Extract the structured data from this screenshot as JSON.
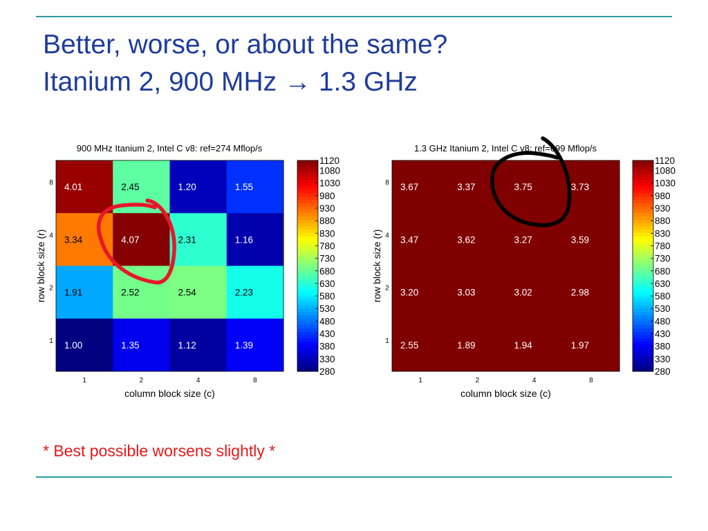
{
  "slide": {
    "title_line_1": "Better, worse, or about the same?",
    "title_line_2": "Itanium 2, 900 MHz → 1.3 GHz",
    "note": "* Best possible worsens slightly *",
    "accent_color": "#2a9c9c",
    "title_color": "#1f3c9b",
    "note_color": "#e81717"
  },
  "chart_data": [
    {
      "type": "heatmap",
      "title": "900 MHz Itanium 2, Intel C v8: ref=274 Mflop/s",
      "xlabel": "column block size (c)",
      "ylabel": "row block size (r)",
      "x": [
        "1",
        "2",
        "4",
        "8"
      ],
      "y": [
        "8",
        "4",
        "2",
        "1"
      ],
      "cell_labels": [
        [
          "4.01",
          "2.45",
          "1.20",
          "1.55"
        ],
        [
          "3.34",
          "4.07",
          "2.31",
          "1.16"
        ],
        [
          "1.91",
          "2.52",
          "2.54",
          "2.23"
        ],
        [
          "1.00",
          "1.35",
          "1.12",
          "1.39"
        ]
      ],
      "colorbar": {
        "min": 280,
        "max": 1120,
        "ticks": [
          "1120",
          "1080",
          "1030",
          "980",
          "930",
          "880",
          "830",
          "780",
          "730",
          "680",
          "630",
          "580",
          "530",
          "480",
          "430",
          "380",
          "330",
          "280"
        ]
      },
      "annotation": {
        "shape": "hand-drawn circle",
        "color": "#e8162a",
        "cell": [
          "4",
          "2"
        ]
      }
    },
    {
      "type": "heatmap",
      "title": "1.3 GHz Itanium 2, Intel C v8: ref=699 Mflop/s",
      "xlabel": "column block size (c)",
      "ylabel": "row block size (r)",
      "x": [
        "1",
        "2",
        "4",
        "8"
      ],
      "y": [
        "8",
        "4",
        "2",
        "1"
      ],
      "cell_labels": [
        [
          "3.67",
          "3.37",
          "3.75",
          "3.73"
        ],
        [
          "3.47",
          "3.62",
          "3.27",
          "3.59"
        ],
        [
          "3.20",
          "3.03",
          "3.02",
          "2.98"
        ],
        [
          "2.55",
          "1.89",
          "1.94",
          "1.97"
        ]
      ],
      "colorbar": {
        "min": 280,
        "max": 1120,
        "ticks": [
          "1120",
          "1080",
          "1030",
          "980",
          "930",
          "880",
          "830",
          "780",
          "730",
          "680",
          "630",
          "580",
          "530",
          "480",
          "430",
          "380",
          "330",
          "280"
        ]
      },
      "annotation": {
        "shape": "hand-drawn circle",
        "color": "#000000",
        "cell": [
          "8",
          "4"
        ]
      }
    }
  ]
}
